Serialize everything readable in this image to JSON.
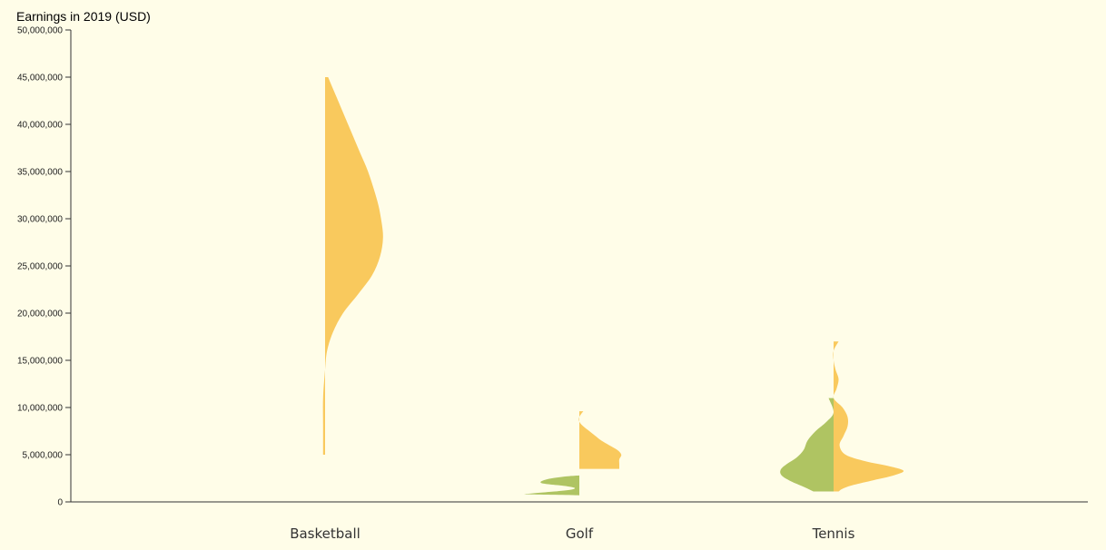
{
  "chart_data": {
    "type": "violin",
    "title": "Earnings in 2019 (USD)",
    "ylabel": "",
    "xlabel": "",
    "ylim": [
      0,
      50000000
    ],
    "yticks": [
      {
        "value": 0,
        "label": "0"
      },
      {
        "value": 5000000,
        "label": "5,000,000"
      },
      {
        "value": 10000000,
        "label": "10,000,000"
      },
      {
        "value": 15000000,
        "label": "15,000,000"
      },
      {
        "value": 20000000,
        "label": "20,000,000"
      },
      {
        "value": 25000000,
        "label": "25,000,000"
      },
      {
        "value": 30000000,
        "label": "30,000,000"
      },
      {
        "value": 35000000,
        "label": "35,000,000"
      },
      {
        "value": 40000000,
        "label": "40,000,000"
      },
      {
        "value": 45000000,
        "label": "45,000,000"
      },
      {
        "value": 50000000,
        "label": "50,000,000"
      }
    ],
    "categories": [
      "Basketball",
      "Golf",
      "Tennis"
    ],
    "colors": {
      "left": "#afc462",
      "right": "#f9c95d"
    },
    "violins": [
      {
        "category": "Basketball",
        "left": [],
        "right": [
          [
            45000000,
            0.03
          ],
          [
            43000000,
            0.11
          ],
          [
            40000000,
            0.23
          ],
          [
            37000000,
            0.35
          ],
          [
            35000000,
            0.43
          ],
          [
            32000000,
            0.52
          ],
          [
            30000000,
            0.56
          ],
          [
            28000000,
            0.58
          ],
          [
            26000000,
            0.55
          ],
          [
            24000000,
            0.47
          ],
          [
            22000000,
            0.33
          ],
          [
            20000000,
            0.18
          ],
          [
            18000000,
            0.08
          ],
          [
            16000000,
            0.02
          ],
          [
            14000000,
            0.0
          ],
          [
            11000000,
            -0.02
          ],
          [
            8000000,
            -0.02
          ],
          [
            5000000,
            -0.02
          ]
        ]
      },
      {
        "category": "Golf",
        "left": [
          [
            2800000,
            0.0
          ],
          [
            2700000,
            0.13
          ],
          [
            2400000,
            0.32
          ],
          [
            2000000,
            0.38
          ],
          [
            1700000,
            0.15
          ],
          [
            1500000,
            0.05
          ],
          [
            1300000,
            0.08
          ],
          [
            1100000,
            0.25
          ],
          [
            900000,
            0.47
          ],
          [
            800000,
            0.52
          ],
          [
            700000,
            0.0
          ]
        ],
        "right": [
          [
            9600000,
            0.04
          ],
          [
            9000000,
            0.0
          ],
          [
            8500000,
            0.0
          ],
          [
            8000000,
            0.04
          ],
          [
            7500000,
            0.1
          ],
          [
            7000000,
            0.16
          ],
          [
            6500000,
            0.22
          ],
          [
            6000000,
            0.3
          ],
          [
            5500000,
            0.38
          ],
          [
            5000000,
            0.42
          ],
          [
            4500000,
            0.4
          ],
          [
            4000000,
            0.4
          ],
          [
            3500000,
            0.4
          ]
        ]
      },
      {
        "category": "Tennis",
        "left": [
          [
            11000000,
            0.05
          ],
          [
            9500000,
            0.0
          ],
          [
            8500000,
            0.07
          ],
          [
            7500000,
            0.18
          ],
          [
            6500000,
            0.26
          ],
          [
            5500000,
            0.3
          ],
          [
            4700000,
            0.37
          ],
          [
            4000000,
            0.47
          ],
          [
            3400000,
            0.53
          ],
          [
            2800000,
            0.52
          ],
          [
            2200000,
            0.43
          ],
          [
            1600000,
            0.3
          ],
          [
            1100000,
            0.2
          ]
        ],
        "right": [
          [
            17000000,
            0.05
          ],
          [
            16000000,
            0.0
          ],
          [
            15000000,
            0.0
          ],
          [
            14000000,
            0.02
          ],
          [
            13000000,
            0.05
          ],
          [
            12000000,
            0.03
          ],
          [
            11000000,
            0.0
          ],
          [
            10000000,
            0.09
          ],
          [
            9000000,
            0.14
          ],
          [
            8000000,
            0.14
          ],
          [
            7000000,
            0.1
          ],
          [
            6000000,
            0.06
          ],
          [
            5000000,
            0.12
          ],
          [
            4300000,
            0.32
          ],
          [
            3800000,
            0.55
          ],
          [
            3300000,
            0.7
          ],
          [
            2800000,
            0.6
          ],
          [
            2300000,
            0.4
          ],
          [
            1800000,
            0.2
          ],
          [
            1400000,
            0.09
          ],
          [
            1100000,
            0.05
          ]
        ]
      }
    ]
  }
}
